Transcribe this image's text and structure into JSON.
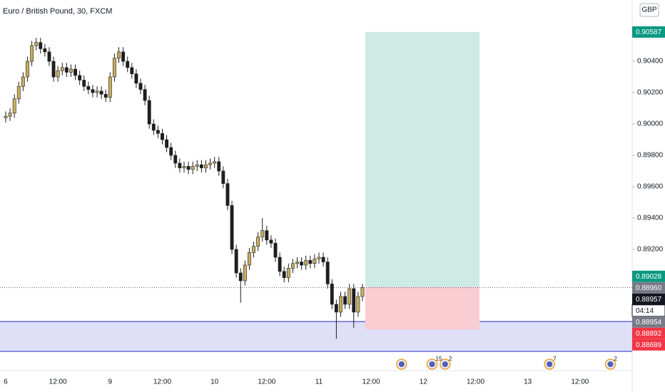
{
  "chart_data": {
    "type": "candlestick",
    "title": "Euro / British Pound, 30, FXCM",
    "currency": "GBP",
    "categories": [
      "6",
      null,
      null,
      null,
      null,
      null,
      null,
      null,
      null,
      null,
      null,
      null,
      "12:00",
      null,
      null,
      null,
      null,
      null,
      null,
      null,
      null,
      null,
      null,
      null,
      "9",
      null,
      null,
      null,
      null,
      null,
      null,
      null,
      null,
      null,
      null,
      null,
      "12:00",
      null,
      null,
      null,
      null,
      null,
      null,
      null,
      null,
      null,
      null,
      null,
      "10",
      null,
      null,
      null,
      null,
      null,
      null,
      null,
      null,
      null,
      null,
      null,
      "12:00",
      null,
      null,
      null,
      null,
      null,
      null,
      null,
      null,
      null,
      null,
      null,
      "11",
      null,
      null,
      null,
      null,
      null,
      null,
      null,
      null,
      null,
      null,
      null,
      "12:00",
      null,
      null,
      null,
      null,
      null,
      null,
      null,
      null,
      null,
      null,
      null,
      "12",
      null,
      null,
      null,
      null,
      null,
      null,
      null,
      null,
      null,
      null,
      null,
      "12:00",
      null,
      null,
      null,
      null,
      null,
      null,
      null,
      null,
      null,
      null,
      null,
      "13",
      null,
      null,
      null,
      null,
      null,
      null,
      null,
      null,
      null,
      null,
      null,
      "12:00",
      null,
      null,
      null,
      null,
      null,
      null,
      null,
      null,
      null,
      null,
      null
    ],
    "open": [
      0.9004,
      0.9005,
      0.9007,
      0.9016,
      0.9024,
      0.903,
      0.904,
      0.905,
      0.9052,
      0.9048,
      0.9046,
      0.904,
      0.903,
      0.9034,
      0.9036,
      0.9033,
      0.9035,
      0.9031,
      0.9028,
      0.9024,
      0.9022,
      0.902,
      0.9021,
      0.9019,
      0.9017,
      0.903,
      0.9042,
      0.9046,
      0.904,
      0.9036,
      0.9032,
      0.9026,
      0.9022,
      0.9015,
      0.9,
      0.8996,
      0.8994,
      0.899,
      0.8985,
      0.898,
      0.8975,
      0.8972,
      0.8973,
      0.8971,
      0.8973,
      0.8974,
      0.8972,
      0.8974,
      0.8975,
      0.8976,
      0.897,
      0.8962,
      0.8948,
      0.892,
      0.8905,
      0.89,
      0.891,
      0.8918,
      0.8922,
      0.8928,
      0.8932,
      0.8926,
      0.8924,
      0.8915,
      0.8906,
      0.8902,
      0.8908,
      0.8911,
      0.8912,
      0.891,
      0.8913,
      0.8911,
      0.8914,
      0.8915,
      0.8912,
      0.8898,
      0.8885,
      0.888,
      0.889,
      0.8885,
      0.8895,
      0.888,
      0.889,
      null,
      null,
      null,
      null,
      null,
      null,
      null,
      null,
      null,
      null,
      null,
      null,
      null,
      null,
      null,
      null,
      null,
      null,
      null,
      null,
      null,
      null,
      null,
      null,
      null,
      null,
      null,
      null,
      null,
      null,
      null,
      null,
      null,
      null,
      null,
      null,
      null,
      null,
      null,
      null,
      null,
      null,
      null,
      null,
      null,
      null,
      null,
      null,
      null,
      null,
      null,
      null,
      null,
      null,
      null,
      null,
      null,
      null,
      null,
      null,
      null
    ],
    "high": [
      0.9008,
      0.901,
      0.9019,
      0.9027,
      0.9033,
      0.9043,
      0.9053,
      0.9055,
      0.9055,
      0.9051,
      0.9049,
      0.9043,
      0.9037,
      0.9039,
      0.9039,
      0.9038,
      0.9038,
      0.9034,
      0.9031,
      0.9027,
      0.9025,
      0.9024,
      0.9024,
      0.9022,
      0.9033,
      0.9045,
      0.9049,
      0.9049,
      0.9043,
      0.9039,
      0.9035,
      0.9029,
      0.9025,
      0.9018,
      0.9003,
      0.8999,
      0.8997,
      0.8993,
      0.8988,
      0.8983,
      0.8978,
      0.8976,
      0.8976,
      0.8976,
      0.8977,
      0.8977,
      0.8977,
      0.8978,
      0.8979,
      0.8979,
      0.8973,
      0.8965,
      0.8951,
      0.8923,
      0.8908,
      0.8913,
      0.8921,
      0.8925,
      0.8931,
      0.894,
      0.8935,
      0.8929,
      0.8927,
      0.8918,
      0.8909,
      0.8911,
      0.8914,
      0.8915,
      0.8915,
      0.8916,
      0.8916,
      0.8917,
      0.8918,
      0.8918,
      0.8915,
      0.8901,
      0.8888,
      0.8893,
      0.8893,
      0.8898,
      0.8898,
      0.8893,
      0.8898,
      null,
      null,
      null,
      null,
      null,
      null,
      null,
      null,
      null,
      null,
      null,
      null,
      null,
      null,
      null,
      null,
      null,
      null,
      null,
      null,
      null,
      null,
      null,
      null,
      null,
      null,
      null,
      null,
      null,
      null,
      null,
      null,
      null,
      null,
      null,
      null,
      null,
      null,
      null,
      null,
      null,
      null,
      null,
      null,
      null,
      null,
      null,
      null,
      null,
      null,
      null,
      null,
      null,
      null,
      null,
      null,
      null,
      null,
      null,
      null,
      null
    ],
    "low": [
      0.9001,
      0.9002,
      0.9004,
      0.9013,
      0.9021,
      0.9027,
      0.9037,
      0.9047,
      0.9045,
      0.9043,
      0.9037,
      0.9027,
      0.9027,
      0.9031,
      0.903,
      0.903,
      0.9028,
      0.9025,
      0.9021,
      0.9019,
      0.9017,
      0.9017,
      0.9016,
      0.9014,
      0.9014,
      0.9027,
      0.9039,
      0.9037,
      0.9033,
      0.9029,
      0.9023,
      0.9019,
      0.9012,
      0.8997,
      0.8993,
      0.8991,
      0.8987,
      0.8982,
      0.8977,
      0.8972,
      0.8969,
      0.8969,
      0.8968,
      0.8968,
      0.897,
      0.8969,
      0.8969,
      0.8971,
      0.8972,
      0.8967,
      0.8959,
      0.8945,
      0.8917,
      0.8902,
      0.8886,
      0.8897,
      0.8907,
      0.8915,
      0.8919,
      0.8925,
      0.8923,
      0.8921,
      0.8912,
      0.8903,
      0.8899,
      0.8899,
      0.8905,
      0.8908,
      0.8907,
      0.8907,
      0.8908,
      0.8908,
      0.8911,
      0.8909,
      0.8895,
      0.8882,
      0.8863,
      0.8877,
      0.8882,
      0.8882,
      0.887,
      0.8877,
      0.8887,
      null,
      null,
      null,
      null,
      null,
      null,
      null,
      null,
      null,
      null,
      null,
      null,
      null,
      null,
      null,
      null,
      null,
      null,
      null,
      null,
      null,
      null,
      null,
      null,
      null,
      null,
      null,
      null,
      null,
      null,
      null,
      null,
      null,
      null,
      null,
      null,
      null,
      null,
      null,
      null,
      null,
      null,
      null,
      null,
      null,
      null,
      null,
      null,
      null,
      null,
      null,
      null,
      null,
      null,
      null,
      null,
      null,
      null,
      null,
      null,
      null
    ],
    "close": [
      0.9005,
      0.9007,
      0.9016,
      0.9024,
      0.903,
      0.904,
      0.905,
      0.9052,
      0.9048,
      0.9046,
      0.904,
      0.903,
      0.9034,
      0.9036,
      0.9033,
      0.9035,
      0.9031,
      0.9028,
      0.9024,
      0.9022,
      0.902,
      0.9021,
      0.9019,
      0.9017,
      0.903,
      0.9042,
      0.9046,
      0.904,
      0.9036,
      0.9032,
      0.9026,
      0.9022,
      0.9015,
      0.9,
      0.8996,
      0.8994,
      0.899,
      0.8985,
      0.898,
      0.8975,
      0.8972,
      0.8973,
      0.8971,
      0.8973,
      0.8974,
      0.8972,
      0.8974,
      0.8975,
      0.8976,
      0.897,
      0.8962,
      0.8948,
      0.892,
      0.8905,
      0.89,
      0.891,
      0.8918,
      0.8922,
      0.8928,
      0.8932,
      0.8926,
      0.8924,
      0.8915,
      0.8906,
      0.8902,
      0.8908,
      0.8911,
      0.8912,
      0.891,
      0.8913,
      0.8911,
      0.8914,
      0.8915,
      0.8912,
      0.8898,
      0.8885,
      0.888,
      0.889,
      0.8885,
      0.8895,
      0.888,
      0.889,
      0.88957,
      null,
      null,
      null,
      null,
      null,
      null,
      null,
      null,
      null,
      null,
      null,
      null,
      null,
      null,
      null,
      null,
      null,
      null,
      null,
      null,
      null,
      null,
      null,
      null,
      null,
      null,
      null,
      null,
      null,
      null,
      null,
      null,
      null,
      null,
      null,
      null,
      null,
      null,
      null,
      null,
      null,
      null,
      null,
      null,
      null,
      null,
      null,
      null,
      null,
      null,
      null,
      null,
      null,
      null,
      null,
      null,
      null,
      null,
      null,
      null,
      null
    ],
    "up_color": "#c9ad62",
    "down_color": "#1e1e1e",
    "ylim": [
      0.88427,
      0.90791
    ],
    "yticks": [
      {
        "value": 0.904,
        "label": "0.90400"
      },
      {
        "value": 0.902,
        "label": "0.90200"
      },
      {
        "value": 0.9,
        "label": "0.90000"
      },
      {
        "value": 0.898,
        "label": "0.89800"
      },
      {
        "value": 0.896,
        "label": "0.89600"
      },
      {
        "value": 0.894,
        "label": "0.89400"
      },
      {
        "value": 0.892,
        "label": "0.89200"
      }
    ],
    "position": {
      "entry": 0.8896,
      "target": 0.90587,
      "stop": 0.88689,
      "profit_color": "#cdeae5",
      "loss_color": "#f9cdd1"
    },
    "zone": {
      "top": 0.8874,
      "bottom": 0.8855,
      "color": "#2b2bc8"
    },
    "price_tags": [
      {
        "value": 0.90587,
        "label": "0.90587",
        "color": "#089981"
      },
      {
        "value": 0.89028,
        "label": "0.89028",
        "color": "#089981"
      },
      {
        "value": 0.8896,
        "label": "0.88960",
        "color": "#787b86"
      },
      {
        "value": 0.88957,
        "label": "0.88957",
        "color": "#131722"
      },
      {
        "value": 0.88957,
        "label": "04:14",
        "color": "#ffffff"
      },
      {
        "value": 0.88954,
        "label": "0.88954",
        "color": "#787b86"
      },
      {
        "value": 0.88892,
        "label": "0.88892",
        "color": "#f23645"
      },
      {
        "value": 0.88689,
        "label": "0.88689",
        "color": "#f23645"
      }
    ],
    "events": [
      {
        "at": 91
      },
      {
        "at": 98,
        "count": "15"
      },
      {
        "at": 101,
        "count": "2"
      },
      {
        "at": 125,
        "count": "7"
      },
      {
        "at": 139,
        "count": "2"
      }
    ]
  }
}
